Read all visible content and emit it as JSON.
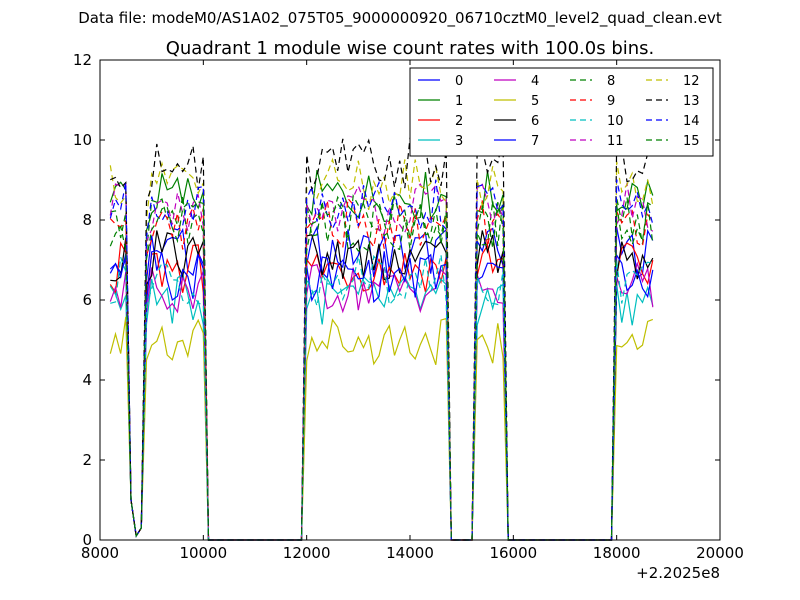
{
  "figure": {
    "suptitle": "Data file: modeM0/AS1A02_075T05_9000000920_06710cztM0_level2_quad_clean.evt"
  },
  "chart_data": {
    "type": "line",
    "title": "Quadrant 1 module wise count rates with 100.0s bins.",
    "xlabel": "",
    "ylabel": "",
    "x_offset_label": "+2.2025e8",
    "xlim": [
      8000,
      20000
    ],
    "ylim": [
      0,
      12
    ],
    "xticks": [
      "8000",
      "10000",
      "12000",
      "14000",
      "16000",
      "18000",
      "20000"
    ],
    "yticks": [
      "0",
      "2",
      "4",
      "6",
      "8",
      "10",
      "12"
    ],
    "grid": false,
    "legend_position": "top-right",
    "segments": [
      {
        "start": 8200,
        "end": 8500,
        "state": "on"
      },
      {
        "start": 8600,
        "end": 8900,
        "state": "dip"
      },
      {
        "start": 8900,
        "end": 10000,
        "state": "on"
      },
      {
        "start": 10100,
        "end": 11900,
        "state": "off"
      },
      {
        "start": 12000,
        "end": 14700,
        "state": "on"
      },
      {
        "start": 14800,
        "end": 15100,
        "state": "off"
      },
      {
        "start": 15300,
        "end": 15800,
        "state": "on"
      },
      {
        "start": 15900,
        "end": 17900,
        "state": "off"
      },
      {
        "start": 18000,
        "end": 18700,
        "state": "on"
      }
    ],
    "series": [
      {
        "name": "0",
        "color": "#0000ff",
        "dashed": false,
        "level": 7.2
      },
      {
        "name": "1",
        "color": "#008000",
        "dashed": false,
        "level": 8.6
      },
      {
        "name": "2",
        "color": "#ff0000",
        "dashed": false,
        "level": 6.8
      },
      {
        "name": "3",
        "color": "#00bfbf",
        "dashed": false,
        "level": 6.0
      },
      {
        "name": "4",
        "color": "#bf00bf",
        "dashed": false,
        "level": 6.3
      },
      {
        "name": "5",
        "color": "#bfbf00",
        "dashed": false,
        "level": 5.0
      },
      {
        "name": "6",
        "color": "#000000",
        "dashed": false,
        "level": 7.1
      },
      {
        "name": "7",
        "color": "#0000ff",
        "dashed": false,
        "level": 6.6
      },
      {
        "name": "8",
        "color": "#008000",
        "dashed": true,
        "level": 8.0
      },
      {
        "name": "9",
        "color": "#ff0000",
        "dashed": true,
        "level": 7.9
      },
      {
        "name": "10",
        "color": "#00bfbf",
        "dashed": true,
        "level": 6.5
      },
      {
        "name": "11",
        "color": "#bf00bf",
        "dashed": true,
        "level": 8.3
      },
      {
        "name": "12",
        "color": "#bfbf00",
        "dashed": true,
        "level": 8.9
      },
      {
        "name": "13",
        "color": "#000000",
        "dashed": true,
        "level": 9.4
      },
      {
        "name": "14",
        "color": "#0000ff",
        "dashed": true,
        "level": 8.4
      },
      {
        "name": "15",
        "color": "#008000",
        "dashed": true,
        "level": 7.8
      }
    ]
  }
}
